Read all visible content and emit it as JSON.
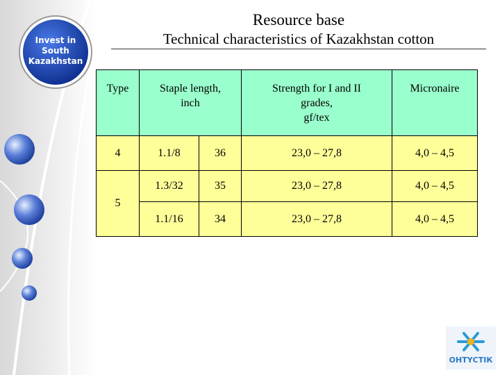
{
  "logo": {
    "lines": [
      "Invest in",
      "South",
      "Kazakhstan"
    ]
  },
  "header": {
    "title": "Resource base",
    "subtitle": "Technical characteristics of Kazakhstan cotton"
  },
  "table": {
    "columns": [
      [
        "Type"
      ],
      [
        "Staple length,",
        "inch"
      ],
      [
        "Strength for I and II",
        "grades,",
        "gf/tex"
      ],
      [
        "Micronaire"
      ]
    ],
    "rows": [
      {
        "type": "4",
        "staple": "1.1/8",
        "value": "36",
        "strength": "23,0 – 27,8",
        "micronaire": "4,0 – 4,5"
      },
      {
        "type": "5",
        "staple": "1.3/32",
        "value": "35",
        "strength": "23,0 – 27,8",
        "micronaire": "4,0 – 4,5"
      },
      {
        "staple": "1.1/16",
        "value": "34",
        "strength": "23,0 – 27,8",
        "micronaire": "4,0 – 4,5"
      }
    ]
  },
  "footer": {
    "brand": "ОНТҮСТІК"
  }
}
